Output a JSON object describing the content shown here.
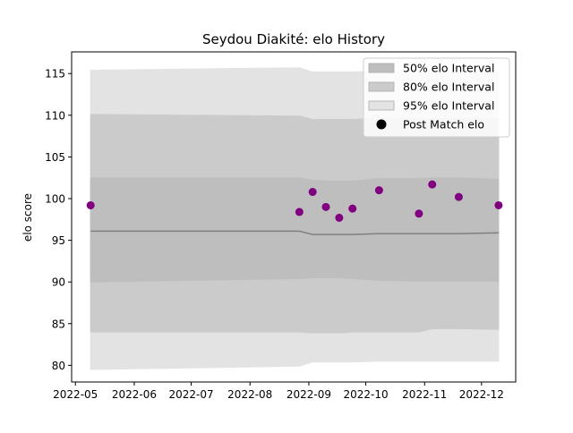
{
  "chart_data": {
    "type": "area",
    "title": "Seydou Diakité: elo History",
    "xlabel": "",
    "ylabel": "elo score",
    "xlim": [
      "2022-04-29",
      "2022-12-19"
    ],
    "ylim": [
      78,
      117.6
    ],
    "yticks": [
      80,
      85,
      90,
      95,
      100,
      105,
      110,
      115
    ],
    "xticks": [
      "2022-05-01",
      "2022-06-01",
      "2022-07-01",
      "2022-08-01",
      "2022-09-01",
      "2022-10-01",
      "2022-11-01",
      "2022-12-01"
    ],
    "xtick_labels": [
      "2022-05",
      "2022-06",
      "2022-07",
      "2022-08",
      "2022-09",
      "2022-10",
      "2022-11",
      "2022-12"
    ],
    "grid": false,
    "legend_position": "top-right",
    "x": [
      "2022-05-09",
      "2022-08-27",
      "2022-09-03",
      "2022-09-10",
      "2022-09-17",
      "2022-09-24",
      "2022-10-08",
      "2022-10-29",
      "2022-11-05",
      "2022-11-19",
      "2022-12-10"
    ],
    "series": [
      {
        "name": "95% elo Interval",
        "kind": "band",
        "color": "#e3e3e3",
        "lower": [
          79.5,
          79.9,
          80.4,
          80.4,
          80.4,
          80.4,
          80.5,
          80.5,
          80.5,
          80.5,
          80.5
        ],
        "upper": [
          115.4,
          115.7,
          115.2,
          115.2,
          115.2,
          115.2,
          115.3,
          115.3,
          115.3,
          115.3,
          115.3
        ]
      },
      {
        "name": "80% elo Interval",
        "kind": "band",
        "color": "#cbcbcb",
        "lower": [
          84.0,
          84.0,
          83.9,
          83.9,
          83.9,
          84.0,
          84.0,
          84.0,
          84.4,
          84.4,
          84.3
        ],
        "upper": [
          110.1,
          109.9,
          109.5,
          109.5,
          109.5,
          109.5,
          109.6,
          109.6,
          109.6,
          109.6,
          109.6
        ]
      },
      {
        "name": "50% elo Interval",
        "kind": "band",
        "color": "#bebebe",
        "lower": [
          90.0,
          90.4,
          90.5,
          90.5,
          90.5,
          90.4,
          90.2,
          90.1,
          90.1,
          90.1,
          90.1
        ],
        "upper": [
          102.5,
          102.5,
          102.2,
          102.1,
          102.1,
          102.1,
          102.4,
          102.4,
          102.5,
          102.5,
          102.3
        ]
      },
      {
        "name": "",
        "kind": "line",
        "color": "#808080",
        "values": [
          96.1,
          96.1,
          95.7,
          95.7,
          95.7,
          95.7,
          95.8,
          95.8,
          95.8,
          95.8,
          95.9
        ]
      },
      {
        "name": "Post Match elo",
        "kind": "points",
        "color": "#800080",
        "points": [
          {
            "x": "2022-05-09",
            "y": 99.2
          },
          {
            "x": "2022-08-27",
            "y": 98.4
          },
          {
            "x": "2022-09-03",
            "y": 100.8
          },
          {
            "x": "2022-09-10",
            "y": 99.0
          },
          {
            "x": "2022-09-17",
            "y": 97.7
          },
          {
            "x": "2022-09-24",
            "y": 98.8
          },
          {
            "x": "2022-10-08",
            "y": 101.0
          },
          {
            "x": "2022-10-29",
            "y": 98.2
          },
          {
            "x": "2022-11-05",
            "y": 101.7
          },
          {
            "x": "2022-11-19",
            "y": 100.2
          },
          {
            "x": "2022-12-10",
            "y": 99.2
          }
        ]
      }
    ]
  }
}
